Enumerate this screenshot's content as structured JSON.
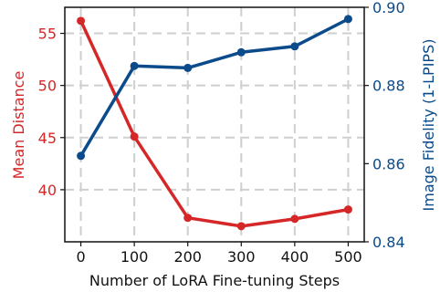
{
  "chart_data": {
    "type": "line",
    "title": "",
    "x": [
      0,
      100,
      200,
      300,
      400,
      500
    ],
    "xlabel": "Number of LoRA Fine-tuning Steps",
    "xlim": [
      -30,
      530
    ],
    "x_ticks": [
      "0",
      "100",
      "200",
      "300",
      "400",
      "500"
    ],
    "grid": true,
    "legend": "none",
    "series": [
      {
        "axis": "left",
        "color": "#d62728",
        "values": [
          56.2,
          45.1,
          37.3,
          36.5,
          37.2,
          38.1
        ]
      },
      {
        "axis": "right",
        "color": "#0b4a8b",
        "values": [
          0.862,
          0.885,
          0.8845,
          0.8885,
          0.89,
          0.897
        ]
      }
    ],
    "ylabel_left": "Mean Distance",
    "ylim_left": [
      35,
      57.5
    ],
    "yticks_left": [
      "40",
      "45",
      "50",
      "55"
    ],
    "ylabel_right": "Image Fidelity (1-LPIPS)",
    "ylim_right": [
      0.84,
      0.9
    ],
    "yticks_right": [
      "0.84",
      "0.86",
      "0.88",
      "0.90"
    ]
  }
}
